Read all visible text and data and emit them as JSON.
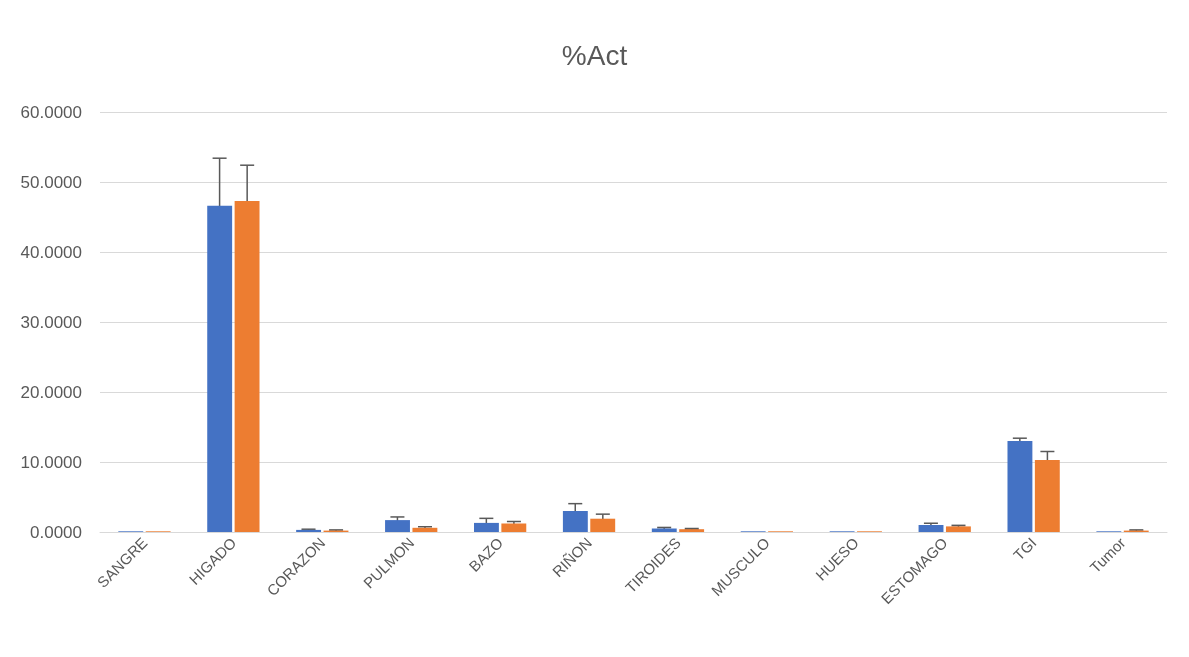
{
  "chart_data": {
    "type": "bar",
    "title": "%Act",
    "categories": [
      "SANGRE",
      "HIGADO",
      "CORAZON",
      "PULMON",
      "BAZO",
      "RIÑON",
      "TIROIDES",
      "MUSCULO",
      "HUESO",
      "ESTOMAGO",
      "TGI",
      "Tumor"
    ],
    "series": [
      {
        "color": "#4472c4",
        "values": [
          0.1,
          46.6,
          0.3,
          1.7,
          1.3,
          3.0,
          0.5,
          0.1,
          0.1,
          1.0,
          13.0,
          0.1
        ],
        "errors": [
          null,
          6.8,
          0.1,
          0.45,
          0.65,
          1.05,
          0.15,
          null,
          null,
          0.25,
          0.4,
          null
        ]
      },
      {
        "color": "#ed7d31",
        "values": [
          0.1,
          47.3,
          0.2,
          0.6,
          1.2,
          1.9,
          0.4,
          0.1,
          0.1,
          0.8,
          10.3,
          0.2
        ],
        "errors": [
          null,
          5.1,
          0.1,
          0.15,
          0.3,
          0.65,
          0.1,
          null,
          null,
          0.15,
          1.2,
          0.1
        ]
      }
    ],
    "ylim": [
      0,
      60
    ],
    "yticks": [
      {
        "value": 0,
        "label": "0.0000"
      },
      {
        "value": 10,
        "label": "10.0000"
      },
      {
        "value": 20,
        "label": "20.0000"
      },
      {
        "value": 30,
        "label": "30.0000"
      },
      {
        "value": 40,
        "label": "40.0000"
      },
      {
        "value": 50,
        "label": "50.0000"
      },
      {
        "value": 60,
        "label": "60.0000"
      }
    ],
    "grid": true
  }
}
